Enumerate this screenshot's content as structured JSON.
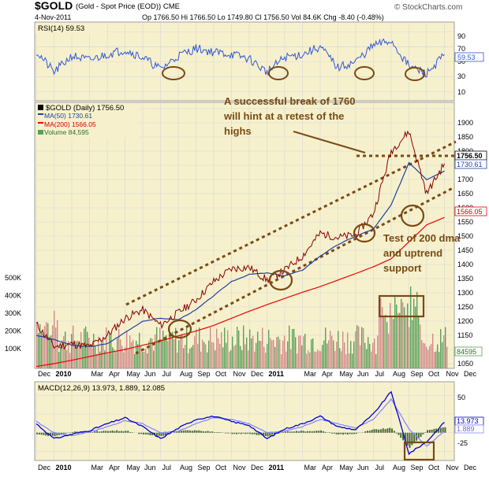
{
  "header": {
    "ticker": "$GOLD",
    "name": "(Gold - Spot Price (EOD)) CME",
    "copyright": "© StockCharts.com",
    "date": "4-Nov-2011",
    "ohlc": "Op 1766.50  Hi 1766.50  Lo 1749.80  Cl 1756.50  Vol 84.6K  Chg -8.40 (-0.48%)"
  },
  "colors": {
    "price": "#8b0000",
    "ma50": "#1f3fa8",
    "ma200": "#ee0000",
    "rsi": "#3355dd",
    "macd": "#0000cc",
    "signal": "#8a8aff",
    "volume": "#5aa05a",
    "annotation": "#7a4a14",
    "panel_bg": "#f6f1cc"
  },
  "rsi_panel": {
    "label": "RSI(14) 59.53",
    "ticks": [
      "90",
      "70",
      "50",
      "30",
      "10"
    ],
    "current_tag": "59.53"
  },
  "price_panel": {
    "legend": {
      "symbol": "$GOLD (Daily) 1756.50",
      "ma50": "MA(50) 1730.61",
      "ma200": "MA(200) 1566.05",
      "volume": "Volume 84,595"
    },
    "ticks": [
      "1900",
      "1850",
      "1800",
      "1750",
      "1700",
      "1650",
      "1600",
      "1550",
      "1500",
      "1450",
      "1400",
      "1350",
      "1300",
      "1250",
      "1200",
      "1150",
      "1100",
      "1050"
    ],
    "vol_ticks": [
      "500K",
      "400K",
      "300K",
      "200K",
      "100K"
    ],
    "tags": {
      "price": "1756.50",
      "ma50": "1730.61",
      "ma200": "1566.05",
      "volume": "84595"
    },
    "annotations": {
      "top": [
        "A successful break of 1760",
        "will hint at a retest of the",
        "highs"
      ],
      "bottom": [
        "Test of 200 dma",
        "and uptrend",
        "support"
      ]
    }
  },
  "macd_panel": {
    "label": "MACD(12,26,9) 13.973, 1.889, 12.085",
    "ticks": [
      "50",
      "0",
      "-25"
    ],
    "tags": {
      "macd": "13.973",
      "signal": "1.889"
    }
  },
  "x_axis": {
    "labels": [
      "Dec",
      "2010",
      "Mar",
      "Apr",
      "May",
      "Jun",
      "Jul",
      "Aug",
      "Sep",
      "Oct",
      "Nov",
      "Dec",
      "2011",
      "Mar",
      "Apr",
      "May",
      "Jun",
      "Jul",
      "Aug",
      "Sep",
      "Oct",
      "Nov",
      "Dec"
    ]
  },
  "chart_data": {
    "type": "line",
    "title": "$GOLD (Gold - Spot Price (EOD)) CME",
    "xlabel": "",
    "ylabel": "",
    "ylim": [
      1050,
      1950
    ],
    "rsi_ylim": [
      0,
      100
    ],
    "macd_ylim": [
      -35,
      65
    ],
    "series": [
      {
        "name": "$GOLD (Daily)",
        "x": [
          "2009-12",
          "2010-01",
          "2010-02",
          "2010-03",
          "2010-04",
          "2010-05",
          "2010-06",
          "2010-07",
          "2010-08",
          "2010-09",
          "2010-10",
          "2010-11",
          "2010-12",
          "2011-01",
          "2011-02",
          "2011-03",
          "2011-04",
          "2011-05",
          "2011-06",
          "2011-07",
          "2011-08",
          "2011-09",
          "2011-10",
          "2011-11"
        ],
        "values": [
          1190,
          1110,
          1120,
          1110,
          1150,
          1210,
          1240,
          1185,
          1230,
          1275,
          1340,
          1385,
          1390,
          1345,
          1380,
          1430,
          1510,
          1495,
          1505,
          1580,
          1800,
          1870,
          1650,
          1756
        ]
      },
      {
        "name": "MA(50)",
        "x": [
          "2009-12",
          "2010-01",
          "2010-02",
          "2010-03",
          "2010-04",
          "2010-05",
          "2010-06",
          "2010-07",
          "2010-08",
          "2010-09",
          "2010-10",
          "2010-11",
          "2010-12",
          "2011-01",
          "2011-02",
          "2011-03",
          "2011-04",
          "2011-05",
          "2011-06",
          "2011-07",
          "2011-08",
          "2011-09",
          "2011-10",
          "2011-11"
        ],
        "values": [
          1150,
          1135,
          1115,
          1110,
          1120,
          1160,
          1200,
          1210,
          1205,
          1240,
          1290,
          1340,
          1365,
          1370,
          1360,
          1380,
          1430,
          1470,
          1500,
          1525,
          1610,
          1760,
          1700,
          1730
        ]
      },
      {
        "name": "MA(200)",
        "x": [
          "2009-12",
          "2010-01",
          "2010-02",
          "2010-03",
          "2010-04",
          "2010-05",
          "2010-06",
          "2010-07",
          "2010-08",
          "2010-09",
          "2010-10",
          "2010-11",
          "2010-12",
          "2011-01",
          "2011-02",
          "2011-03",
          "2011-04",
          "2011-05",
          "2011-06",
          "2011-07",
          "2011-08",
          "2011-09",
          "2011-10",
          "2011-11"
        ],
        "values": [
          1040,
          1050,
          1062,
          1075,
          1088,
          1100,
          1115,
          1130,
          1148,
          1165,
          1185,
          1210,
          1235,
          1258,
          1280,
          1302,
          1322,
          1345,
          1368,
          1392,
          1420,
          1480,
          1540,
          1566
        ]
      },
      {
        "name": "RSI(14)",
        "x": [
          "2009-12",
          "2010-01",
          "2010-02",
          "2010-03",
          "2010-04",
          "2010-05",
          "2010-06",
          "2010-07",
          "2010-08",
          "2010-09",
          "2010-10",
          "2010-11",
          "2010-12",
          "2011-01",
          "2011-02",
          "2011-03",
          "2011-04",
          "2011-05",
          "2011-06",
          "2011-07",
          "2011-08",
          "2011-09",
          "2011-10",
          "2011-11"
        ],
        "values": [
          64,
          36,
          58,
          52,
          60,
          66,
          56,
          40,
          58,
          68,
          63,
          60,
          54,
          36,
          56,
          60,
          70,
          42,
          50,
          72,
          78,
          44,
          34,
          59.53
        ]
      },
      {
        "name": "MACD",
        "x": [
          "2009-12",
          "2010-01",
          "2010-02",
          "2010-03",
          "2010-04",
          "2010-05",
          "2010-06",
          "2010-07",
          "2010-08",
          "2010-09",
          "2010-10",
          "2010-11",
          "2010-12",
          "2011-01",
          "2011-02",
          "2011-03",
          "2011-04",
          "2011-05",
          "2011-06",
          "2011-07",
          "2011-08",
          "2011-09",
          "2011-10",
          "2011-11"
        ],
        "values": [
          12,
          -8,
          -2,
          3,
          12,
          20,
          8,
          -8,
          6,
          18,
          22,
          15,
          10,
          -8,
          5,
          12,
          22,
          8,
          4,
          25,
          55,
          -28,
          -12,
          13.973
        ]
      },
      {
        "name": "Signal",
        "x": [
          "2009-12",
          "2010-01",
          "2010-02",
          "2010-03",
          "2010-04",
          "2010-05",
          "2010-06",
          "2010-07",
          "2010-08",
          "2010-09",
          "2010-10",
          "2010-11",
          "2010-12",
          "2011-01",
          "2011-02",
          "2011-03",
          "2011-04",
          "2011-05",
          "2011-06",
          "2011-07",
          "2011-08",
          "2011-09",
          "2011-10",
          "2011-11"
        ],
        "values": [
          15,
          0,
          -4,
          1,
          8,
          16,
          12,
          0,
          2,
          12,
          20,
          18,
          12,
          0,
          2,
          8,
          18,
          12,
          6,
          18,
          45,
          5,
          -18,
          1.889
        ]
      }
    ],
    "reference_lines": {
      "breakout": 1760
    },
    "grid": true,
    "legend": "top-left"
  }
}
